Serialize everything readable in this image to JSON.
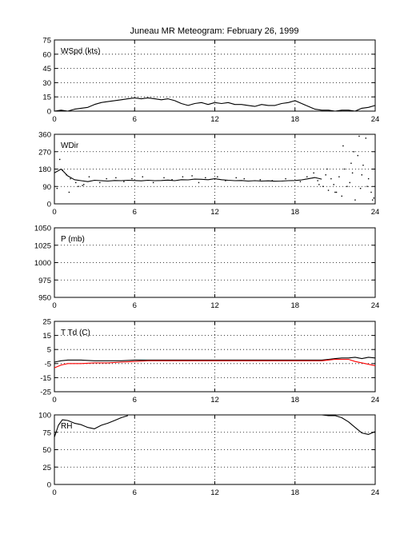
{
  "title": "Juneau MR Meteogram:  February 26, 1999",
  "chart_data": [
    {
      "type": "line",
      "label": "WSpd (kts)",
      "xlim": [
        0,
        24
      ],
      "ylim": [
        0,
        75
      ],
      "xticks": [
        0,
        6,
        12,
        18,
        24
      ],
      "yticks": [
        0,
        15,
        30,
        45,
        60,
        75
      ],
      "grid": true,
      "series": [
        {
          "color": "#000000",
          "style": "line",
          "x": [
            0,
            0.5,
            1,
            1.5,
            2,
            2.5,
            3,
            3.5,
            4,
            4.5,
            5,
            5.5,
            6,
            6.5,
            7,
            7.5,
            8,
            8.5,
            9,
            9.5,
            10,
            10.5,
            11,
            11.5,
            12,
            12.5,
            13,
            13.5,
            14,
            14.5,
            15,
            15.5,
            16,
            16.5,
            17,
            17.5,
            18,
            18.5,
            19,
            19.5,
            20,
            20.5,
            21,
            21.5,
            22,
            22.5,
            23,
            23.5,
            24
          ],
          "y": [
            0,
            1,
            0,
            2,
            3,
            4,
            7,
            9,
            10,
            11,
            12,
            13,
            14,
            13,
            14,
            13,
            12,
            13,
            11,
            8,
            6,
            8,
            9,
            7,
            9,
            8,
            9,
            7,
            7,
            6,
            5,
            7,
            6,
            6,
            8,
            9,
            11,
            8,
            5,
            2,
            1,
            1,
            0,
            1,
            1,
            0,
            3,
            4,
            6
          ]
        }
      ]
    },
    {
      "type": "scatter",
      "label": "WDir",
      "xlim": [
        0,
        24
      ],
      "ylim": [
        0,
        360
      ],
      "xticks": [
        0,
        6,
        12,
        18,
        24
      ],
      "yticks": [
        0,
        90,
        180,
        270,
        360
      ],
      "grid": true,
      "series": [
        {
          "color": "#000000",
          "style": "line",
          "x": [
            0,
            0.5,
            1,
            1.5,
            2,
            2.5,
            3,
            3.5,
            4,
            4.5,
            5,
            5.5,
            6,
            6.5,
            7,
            7.5,
            8,
            8.5,
            9,
            9.5,
            10,
            10.5,
            11,
            11.5,
            12,
            12.5,
            13,
            13.5,
            14,
            14.5,
            15,
            15.5,
            16,
            16.5,
            17,
            17.5,
            18,
            18.5,
            19,
            19.5,
            20
          ],
          "y": [
            160,
            180,
            145,
            125,
            120,
            115,
            122,
            120,
            118,
            121,
            120,
            122,
            121,
            119,
            122,
            120,
            121,
            123,
            120,
            125,
            124,
            128,
            127,
            125,
            130,
            125,
            122,
            120,
            121,
            118,
            120,
            118,
            119,
            117,
            118,
            120,
            121,
            124,
            130,
            136,
            128
          ]
        },
        {
          "color": "#000000",
          "style": "dots",
          "x": [
            0.2,
            0.4,
            0.6,
            0.9,
            1.2,
            1.8,
            2.2,
            2.6,
            3.4,
            3.9,
            4.6,
            5.2,
            5.8,
            6.6,
            7.4,
            8.2,
            8.8,
            9.6,
            10.3,
            10.8,
            11.3,
            12.2,
            12.8,
            13.6,
            14.2,
            15.4,
            16.3,
            17.3,
            18.4,
            18.9,
            19.4,
            19.7,
            20.1,
            20.3,
            20.5,
            20.7,
            20.9,
            21.1,
            21.3,
            21.5,
            21.7,
            21.9,
            22.1,
            22.3,
            22.5,
            22.7,
            22.9,
            23.1,
            23.3,
            23.5,
            23.7,
            23.9,
            21.6,
            22.2,
            23.0,
            23.4,
            22.8,
            20.4,
            19.8,
            21.0,
            22.4,
            23.8,
            1.1,
            1.6,
            2.1
          ],
          "y": [
            80,
            230,
            175,
            150,
            130,
            90,
            100,
            140,
            110,
            130,
            135,
            115,
            130,
            140,
            110,
            135,
            125,
            140,
            145,
            110,
            135,
            140,
            120,
            135,
            130,
            125,
            120,
            130,
            115,
            140,
            160,
            120,
            90,
            150,
            70,
            130,
            100,
            60,
            140,
            40,
            180,
            90,
            110,
            160,
            20,
            250,
            80,
            200,
            340,
            130,
            60,
            30,
            300,
            210,
            150,
            90,
            350,
            180,
            100,
            60,
            270,
            20,
            60,
            110,
            95
          ]
        }
      ]
    },
    {
      "type": "line",
      "label": "P (mb)",
      "xlim": [
        0,
        24
      ],
      "ylim": [
        950,
        1050
      ],
      "xticks": [
        0,
        6,
        12,
        18,
        24
      ],
      "yticks": [
        950,
        975,
        1000,
        1025,
        1050
      ],
      "grid": true,
      "series": []
    },
    {
      "type": "line",
      "label": "T Td (C)",
      "xlim": [
        0,
        24
      ],
      "ylim": [
        -25,
        25
      ],
      "xticks": [
        0,
        6,
        12,
        18,
        24
      ],
      "yticks": [
        -25,
        -15,
        -5,
        5,
        15,
        25
      ],
      "grid": true,
      "series": [
        {
          "color": "#000000",
          "style": "line",
          "x": [
            0,
            0.5,
            1,
            2,
            3,
            4,
            5,
            6,
            7,
            8,
            9,
            10,
            11,
            12,
            13,
            14,
            15,
            16,
            17,
            18,
            19,
            20,
            20.5,
            21,
            21.5,
            22,
            22.5,
            23,
            23.5,
            24
          ],
          "y": [
            -4,
            -3,
            -2.5,
            -2.5,
            -3,
            -3,
            -3,
            -2.5,
            -2.5,
            -2.5,
            -2.5,
            -2.5,
            -2.5,
            -2.5,
            -2.5,
            -2.5,
            -2.5,
            -2.5,
            -2.5,
            -2.5,
            -2.5,
            -2.5,
            -2,
            -1.5,
            -1,
            -1,
            -0.5,
            -1.5,
            -0.5,
            -1
          ]
        },
        {
          "color": "#ff0000",
          "style": "line",
          "x": [
            0,
            0.5,
            1,
            2,
            3,
            4,
            5,
            6,
            7,
            8,
            9,
            10,
            11,
            12,
            13,
            14,
            15,
            16,
            17,
            18,
            19,
            20,
            20.5,
            21,
            21.5,
            22,
            22.5,
            23,
            23.5,
            24
          ],
          "y": [
            -8,
            -6,
            -5,
            -5,
            -4.5,
            -4.5,
            -4,
            -3.5,
            -3,
            -3,
            -3,
            -3,
            -3,
            -3,
            -3,
            -3,
            -3,
            -3,
            -3,
            -3,
            -3,
            -3,
            -2.5,
            -2,
            -2,
            -2,
            -3.5,
            -4.5,
            -5.5,
            -6.5
          ]
        }
      ]
    },
    {
      "type": "line",
      "label": "RH",
      "xlim": [
        0,
        24
      ],
      "ylim": [
        0,
        100
      ],
      "xticks": [
        0,
        6,
        12,
        18,
        24
      ],
      "yticks": [
        0,
        25,
        50,
        75,
        100
      ],
      "grid": true,
      "series": [
        {
          "color": "#000000",
          "style": "line",
          "x": [
            0,
            0.3,
            0.6,
            1,
            1.5,
            2,
            2.5,
            3,
            3.5,
            4,
            4.5,
            5,
            5.5
          ],
          "y": [
            68,
            85,
            93,
            92,
            88,
            86,
            82,
            80,
            85,
            88,
            92,
            96,
            99
          ]
        },
        {
          "color": "#000000",
          "style": "line",
          "x": [
            20,
            20.5,
            21,
            21.5,
            22,
            22.5,
            23,
            23.5,
            24
          ],
          "y": [
            100,
            99,
            99,
            96,
            90,
            82,
            74,
            72,
            76
          ]
        }
      ]
    }
  ]
}
